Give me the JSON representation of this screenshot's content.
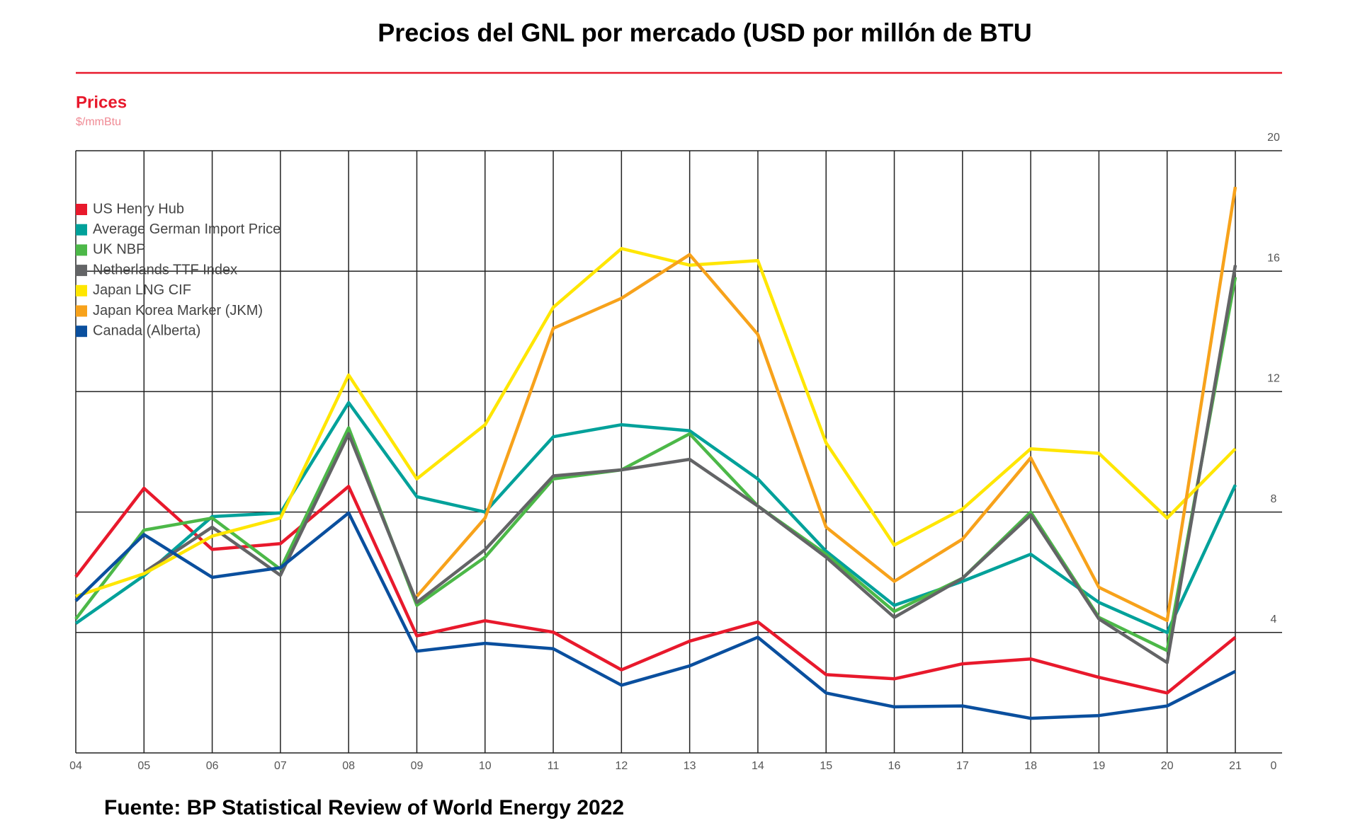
{
  "chart_data": {
    "type": "line",
    "title": "Precios del GNL por mercado (USD por millón de BTU",
    "subtitle": "Prices",
    "y_label": "$/mmBtu",
    "source": "Fuente: BP Statistical Review of World Energy 2022",
    "categories": [
      "04",
      "05",
      "06",
      "07",
      "08",
      "09",
      "10",
      "11",
      "12",
      "13",
      "14",
      "15",
      "16",
      "17",
      "18",
      "19",
      "20",
      "21"
    ],
    "ylim": [
      0,
      20
    ],
    "yticks": [
      0,
      4,
      8,
      12,
      16,
      20
    ],
    "grid": true,
    "legend": "upper left",
    "series": [
      {
        "name": "US Henry Hub",
        "color": "#e8192c",
        "values": [
          5.85,
          8.79,
          6.76,
          6.95,
          8.85,
          3.89,
          4.39,
          4.01,
          2.76,
          3.71,
          4.35,
          2.6,
          2.46,
          2.96,
          3.12,
          2.51,
          1.99,
          3.84
        ]
      },
      {
        "name": "Average German Import Price",
        "color": "#00a19a",
        "values": [
          4.3,
          5.89,
          7.85,
          7.97,
          11.63,
          8.51,
          8.0,
          10.5,
          10.9,
          10.7,
          9.1,
          6.7,
          4.9,
          5.7,
          6.6,
          5.0,
          4.0,
          8.9
        ]
      },
      {
        "name": "UK NBP",
        "color": "#4cb848",
        "values": [
          4.45,
          7.4,
          7.8,
          6.1,
          10.8,
          4.9,
          6.5,
          9.1,
          9.4,
          10.6,
          8.2,
          6.6,
          4.7,
          5.8,
          8.0,
          4.5,
          3.4,
          15.8
        ]
      },
      {
        "name": "Netherlands TTF Index",
        "color": "#636466",
        "values": [
          null,
          6.0,
          7.5,
          5.9,
          10.6,
          5.0,
          6.75,
          9.2,
          9.4,
          9.75,
          8.2,
          6.5,
          4.5,
          5.8,
          7.9,
          4.45,
          3.0,
          16.2
        ]
      },
      {
        "name": "Japan LNG CIF",
        "color": "#ffe600",
        "values": [
          5.2,
          5.95,
          7.2,
          7.8,
          12.55,
          9.1,
          10.9,
          14.8,
          16.75,
          16.2,
          16.35,
          10.3,
          6.9,
          8.1,
          10.1,
          9.95,
          7.8,
          10.1
        ]
      },
      {
        "name": "Japan Korea Marker (JKM)",
        "color": "#f7a21b",
        "values": [
          null,
          null,
          null,
          null,
          null,
          5.2,
          7.8,
          14.1,
          15.1,
          16.55,
          13.9,
          7.5,
          5.7,
          7.1,
          9.8,
          5.5,
          4.4,
          18.8
        ]
      },
      {
        "name": "Canada (Alberta)",
        "color": "#0a4f9e",
        "values": [
          5.05,
          7.25,
          5.83,
          6.15,
          7.97,
          3.38,
          3.64,
          3.46,
          2.25,
          2.89,
          3.84,
          1.99,
          1.53,
          1.56,
          1.15,
          1.24,
          1.56,
          2.71
        ]
      }
    ]
  }
}
